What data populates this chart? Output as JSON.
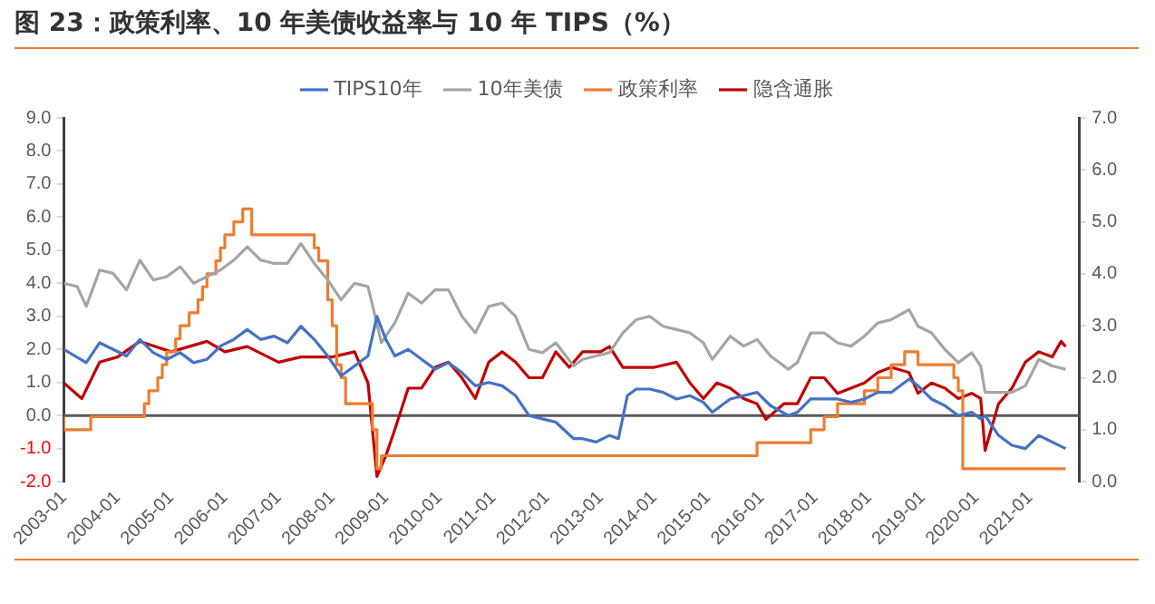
{
  "chart_data": {
    "type": "line",
    "title": "图 23：政策利率、10 年美债收益率与 10 年 TIPS（%）",
    "xlim": [
      "2003-01",
      "2021-12"
    ],
    "xticks": [
      "2003-01",
      "2004-01",
      "2005-01",
      "2006-01",
      "2007-01",
      "2008-01",
      "2009-01",
      "2010-01",
      "2011-01",
      "2012-01",
      "2013-01",
      "2014-01",
      "2015-01",
      "2016-01",
      "2017-01",
      "2018-01",
      "2019-01",
      "2020-01",
      "2021-01"
    ],
    "ylim": [
      -2,
      9
    ],
    "yticks": [
      {
        "value": -2,
        "label": "-2.0"
      },
      {
        "value": -1,
        "label": "-1.0"
      },
      {
        "value": 0,
        "label": "0.0"
      },
      {
        "value": 1,
        "label": "1.0"
      },
      {
        "value": 2,
        "label": "2.0"
      },
      {
        "value": 3,
        "label": "3.0"
      },
      {
        "value": 4,
        "label": "4.0"
      },
      {
        "value": 5,
        "label": "5.0"
      },
      {
        "value": 6,
        "label": "6.0"
      },
      {
        "value": 7,
        "label": "7.0"
      },
      {
        "value": 8,
        "label": "8.0"
      },
      {
        "value": 9,
        "label": "9.0"
      }
    ],
    "y2lim": [
      0,
      7
    ],
    "y2ticks": [
      {
        "value": 0,
        "label": "0.0"
      },
      {
        "value": 1,
        "label": "1.0"
      },
      {
        "value": 2,
        "label": "2.0"
      },
      {
        "value": 3,
        "label": "3.0"
      },
      {
        "value": 4,
        "label": "4.0"
      },
      {
        "value": 5,
        "label": "5.0"
      },
      {
        "value": 6,
        "label": "6.0"
      },
      {
        "value": 7,
        "label": "7.0"
      }
    ],
    "grid": false,
    "legend": "top",
    "ref_lines": [
      {
        "axis": "y",
        "value": 0,
        "color": "#595959"
      }
    ],
    "series": [
      {
        "name": "TIPS10年",
        "color": "#4472c4",
        "x": [
          "2003-01",
          "2003-06",
          "2003-09",
          "2003-12",
          "2004-03",
          "2004-06",
          "2004-09",
          "2004-12",
          "2005-03",
          "2005-06",
          "2005-09",
          "2005-12",
          "2006-03",
          "2006-06",
          "2006-09",
          "2006-12",
          "2007-03",
          "2007-06",
          "2007-09",
          "2007-12",
          "2008-03",
          "2008-06",
          "2008-09",
          "2008-11",
          "2009-01",
          "2009-03",
          "2009-06",
          "2009-09",
          "2009-12",
          "2010-03",
          "2010-06",
          "2010-09",
          "2010-12",
          "2011-03",
          "2011-06",
          "2011-09",
          "2011-12",
          "2012-03",
          "2012-07",
          "2012-09",
          "2012-12",
          "2013-03",
          "2013-05",
          "2013-07",
          "2013-09",
          "2013-12",
          "2014-03",
          "2014-06",
          "2014-09",
          "2014-12",
          "2015-02",
          "2015-06",
          "2015-09",
          "2015-12",
          "2016-03",
          "2016-07",
          "2016-09",
          "2016-12",
          "2017-03",
          "2017-06",
          "2017-09",
          "2017-12",
          "2018-03",
          "2018-06",
          "2018-10",
          "2018-12",
          "2019-03",
          "2019-06",
          "2019-09",
          "2019-12",
          "2020-02",
          "2020-03",
          "2020-06",
          "2020-09",
          "2020-12",
          "2021-03",
          "2021-06",
          "2021-09"
        ],
        "values": [
          2.0,
          1.6,
          2.2,
          2.0,
          1.8,
          2.3,
          1.9,
          1.7,
          1.9,
          1.6,
          1.7,
          2.1,
          2.3,
          2.6,
          2.3,
          2.4,
          2.2,
          2.7,
          2.3,
          1.8,
          1.2,
          1.5,
          1.8,
          3.0,
          2.3,
          1.8,
          2.0,
          1.7,
          1.4,
          1.6,
          1.3,
          0.9,
          1.0,
          0.9,
          0.6,
          0.0,
          -0.1,
          -0.2,
          -0.7,
          -0.7,
          -0.8,
          -0.6,
          -0.7,
          0.6,
          0.8,
          0.8,
          0.7,
          0.5,
          0.6,
          0.4,
          0.1,
          0.5,
          0.6,
          0.7,
          0.3,
          0.0,
          0.1,
          0.5,
          0.5,
          0.5,
          0.4,
          0.5,
          0.7,
          0.7,
          1.1,
          0.9,
          0.5,
          0.3,
          0.0,
          0.1,
          -0.1,
          0.0,
          -0.6,
          -0.9,
          -1.0,
          -0.6,
          -0.8,
          -1.0
        ]
      },
      {
        "name": "10年美债",
        "color": "#a5a5a5",
        "x": [
          "2003-01",
          "2003-04",
          "2003-06",
          "2003-09",
          "2003-12",
          "2004-03",
          "2004-06",
          "2004-09",
          "2004-12",
          "2005-03",
          "2005-06",
          "2005-09",
          "2005-12",
          "2006-03",
          "2006-06",
          "2006-09",
          "2006-12",
          "2007-03",
          "2007-06",
          "2007-09",
          "2007-12",
          "2008-03",
          "2008-06",
          "2008-09",
          "2008-12",
          "2009-03",
          "2009-06",
          "2009-09",
          "2009-12",
          "2010-03",
          "2010-06",
          "2010-09",
          "2010-12",
          "2011-03",
          "2011-06",
          "2011-09",
          "2011-12",
          "2012-03",
          "2012-07",
          "2012-09",
          "2012-12",
          "2013-03",
          "2013-06",
          "2013-09",
          "2013-12",
          "2014-03",
          "2014-06",
          "2014-09",
          "2014-12",
          "2015-02",
          "2015-06",
          "2015-09",
          "2015-12",
          "2016-03",
          "2016-07",
          "2016-09",
          "2016-12",
          "2017-03",
          "2017-06",
          "2017-09",
          "2017-12",
          "2018-03",
          "2018-06",
          "2018-10",
          "2018-12",
          "2019-03",
          "2019-06",
          "2019-09",
          "2019-12",
          "2020-02",
          "2020-03",
          "2020-06",
          "2020-09",
          "2020-12",
          "2021-03",
          "2021-06",
          "2021-09"
        ],
        "values": [
          4.0,
          3.9,
          3.3,
          4.4,
          4.3,
          3.8,
          4.7,
          4.1,
          4.2,
          4.5,
          4.0,
          4.2,
          4.4,
          4.7,
          5.1,
          4.7,
          4.6,
          4.6,
          5.2,
          4.6,
          4.1,
          3.5,
          4.0,
          3.9,
          2.2,
          2.8,
          3.7,
          3.4,
          3.8,
          3.8,
          3.0,
          2.5,
          3.3,
          3.4,
          3.0,
          2.0,
          1.9,
          2.2,
          1.5,
          1.7,
          1.8,
          1.9,
          2.5,
          2.9,
          3.0,
          2.7,
          2.6,
          2.5,
          2.2,
          1.7,
          2.4,
          2.1,
          2.3,
          1.8,
          1.4,
          1.6,
          2.5,
          2.5,
          2.2,
          2.1,
          2.4,
          2.8,
          2.9,
          3.2,
          2.7,
          2.5,
          2.0,
          1.6,
          1.9,
          1.5,
          0.7,
          0.7,
          0.7,
          0.9,
          1.7,
          1.5,
          1.4
        ]
      },
      {
        "name": "政策利率",
        "type": "step",
        "axis": "y2",
        "color": "#ed7d31",
        "x": [
          "2003-01",
          "2003-07",
          "2004-07",
          "2004-08",
          "2004-10",
          "2004-11",
          "2004-12",
          "2005-02",
          "2005-03",
          "2005-05",
          "2005-07",
          "2005-08",
          "2005-09",
          "2005-11",
          "2005-12",
          "2006-01",
          "2006-03",
          "2006-05",
          "2006-07",
          "2007-09",
          "2007-10",
          "2007-12",
          "2008-01",
          "2008-02",
          "2008-03",
          "2008-04",
          "2008-10",
          "2008-11",
          "2008-12",
          "2015-12",
          "2016-12",
          "2017-03",
          "2017-06",
          "2017-12",
          "2018-03",
          "2018-06",
          "2018-09",
          "2018-12",
          "2019-08",
          "2019-09",
          "2019-10",
          "2020-03",
          "2021-09"
        ],
        "values": [
          1.25,
          1.0,
          1.25,
          1.5,
          1.75,
          2.0,
          2.25,
          2.5,
          2.75,
          3.0,
          3.25,
          3.5,
          3.75,
          4.0,
          4.25,
          4.5,
          4.75,
          5.0,
          5.25,
          4.75,
          4.5,
          4.25,
          3.5,
          3.0,
          2.25,
          2.0,
          1.5,
          1.0,
          0.25,
          0.5,
          0.75,
          1.0,
          1.25,
          1.5,
          1.75,
          2.0,
          2.25,
          2.5,
          2.25,
          2.0,
          1.75,
          0.25,
          0.25
        ]
      },
      {
        "name": "隐含通胀",
        "axis": "y2",
        "color": "#c00000",
        "x": [
          "2003-01",
          "2003-05",
          "2003-09",
          "2004-01",
          "2004-06",
          "2005-01",
          "2005-09",
          "2006-01",
          "2006-06",
          "2007-01",
          "2007-06",
          "2008-01",
          "2008-06",
          "2008-09",
          "2008-11",
          "2009-01",
          "2009-03",
          "2009-06",
          "2009-09",
          "2009-12",
          "2010-03",
          "2010-06",
          "2010-09",
          "2010-12",
          "2011-03",
          "2011-06",
          "2011-09",
          "2011-12",
          "2012-03",
          "2012-06",
          "2012-09",
          "2013-01",
          "2013-03",
          "2013-06",
          "2013-09",
          "2014-01",
          "2014-06",
          "2014-09",
          "2014-12",
          "2015-03",
          "2015-06",
          "2015-09",
          "2015-12",
          "2016-02",
          "2016-06",
          "2016-09",
          "2016-12",
          "2017-03",
          "2017-06",
          "2017-09",
          "2017-12",
          "2018-03",
          "2018-06",
          "2018-10",
          "2018-12",
          "2019-03",
          "2019-06",
          "2019-09",
          "2019-12",
          "2020-02",
          "2020-03",
          "2020-06",
          "2020-09",
          "2020-12",
          "2021-03",
          "2021-06",
          "2021-08",
          "2021-09"
        ],
        "values": [
          1.9,
          1.6,
          2.3,
          2.4,
          2.7,
          2.5,
          2.7,
          2.5,
          2.6,
          2.3,
          2.4,
          2.4,
          2.5,
          1.9,
          0.1,
          0.5,
          1.0,
          1.8,
          1.8,
          2.2,
          2.3,
          2.0,
          1.6,
          2.3,
          2.5,
          2.3,
          2.0,
          2.0,
          2.5,
          2.2,
          2.5,
          2.5,
          2.6,
          2.2,
          2.2,
          2.2,
          2.3,
          1.9,
          1.6,
          1.9,
          1.8,
          1.6,
          1.5,
          1.2,
          1.5,
          1.5,
          2.0,
          2.0,
          1.7,
          1.8,
          1.9,
          2.1,
          2.2,
          2.1,
          1.7,
          1.9,
          1.8,
          1.6,
          1.7,
          1.6,
          0.6,
          1.5,
          1.8,
          2.3,
          2.5,
          2.4,
          2.7,
          2.6
        ]
      }
    ]
  }
}
